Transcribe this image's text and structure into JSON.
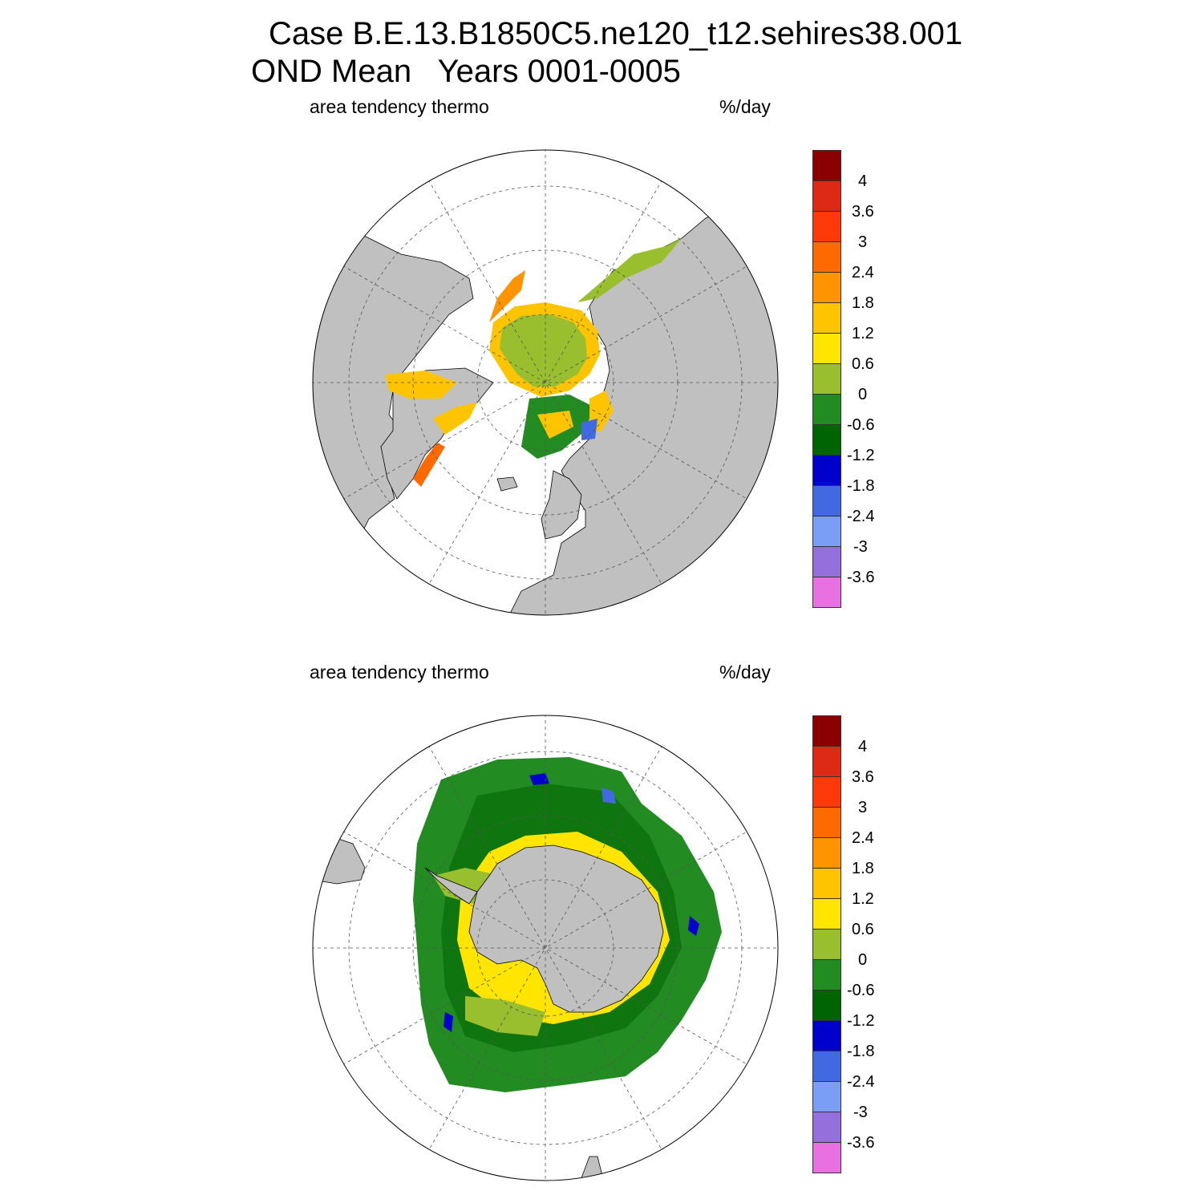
{
  "title": {
    "line1": "Case B.E.13.B1850C5.ne120_t12.sehires38.001",
    "line2": "OND Mean   Years 0001-0005"
  },
  "panels": [
    {
      "id": "north",
      "left_label": "area tendency thermo",
      "right_label": "%/day",
      "hemisphere": "north"
    },
    {
      "id": "south",
      "left_label": "area tendency thermo",
      "right_label": "%/day",
      "hemisphere": "south"
    }
  ],
  "colorbar": {
    "colors": [
      "#8b0000",
      "#dd2a14",
      "#ff3a0a",
      "#ff6a00",
      "#ff9400",
      "#ffc400",
      "#ffe500",
      "#99bf2f",
      "#228b22",
      "#006400",
      "#0000cd",
      "#4169e1",
      "#7a9ef5",
      "#9370db",
      "#e870e0"
    ],
    "ticks": [
      "4",
      "3.6",
      "3",
      "2.4",
      "1.8",
      "1.2",
      "0.6",
      "0",
      "-0.6",
      "-1.2",
      "-1.8",
      "-2.4",
      "-3",
      "-3.6"
    ]
  },
  "colors": {
    "land": "#c0c0c0",
    "ocean": "#ffffff",
    "grid": "#555555"
  }
}
